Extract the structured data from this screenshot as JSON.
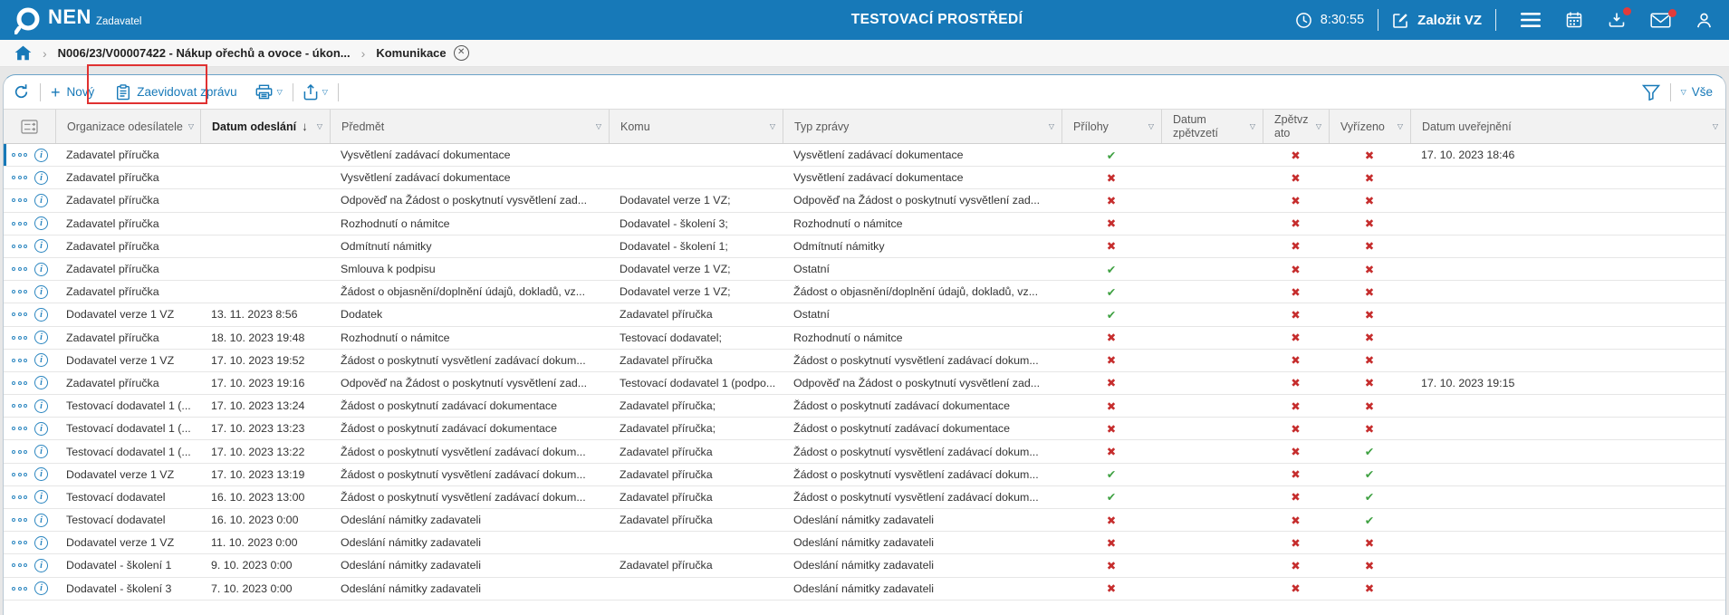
{
  "topbar": {
    "brand": "NEN",
    "brand_sub": "Zadavatel",
    "title": "TESTOVACÍ PROSTŘEDÍ",
    "clock": "8:30:55",
    "create_label": "Založit VZ",
    "has_download_notification": true,
    "has_mail_notification": true
  },
  "breadcrumb": {
    "items": [
      "N006/23/V00007422 - Nákup ořechů a ovoce - úkon...",
      "Komunikace"
    ]
  },
  "toolbar": {
    "new_label": "Nový",
    "register_label": "Zaevidovat zprávu",
    "filter_all_label": "Vše"
  },
  "glyphs": {
    "filter_caret": "▽",
    "sort_desc": "↓",
    "plus": "+",
    "check": "✔",
    "cross": "✖",
    "chevron": "›",
    "close": "✕"
  },
  "table": {
    "columns": [
      {
        "key": "org",
        "label": "Organizace odesílatele",
        "filter": true
      },
      {
        "key": "sent",
        "label": "Datum odeslání",
        "filter": true,
        "sorted": "desc"
      },
      {
        "key": "subject",
        "label": "Předmět",
        "filter": true
      },
      {
        "key": "to",
        "label": "Komu",
        "filter": true
      },
      {
        "key": "type",
        "label": "Typ zprávy",
        "filter": true
      },
      {
        "key": "attachments",
        "label": "Přílohy",
        "filter": true,
        "icon_col": true
      },
      {
        "key": "withdrawal_date",
        "label": "Datum zpětvzetí",
        "filter": true,
        "wrap": true
      },
      {
        "key": "withdrawn",
        "label": "Zpětvzato",
        "filter": true,
        "icon_col": true,
        "wrap_narrow": true
      },
      {
        "key": "resolved",
        "label": "Vyřízeno",
        "filter": true,
        "icon_col": true
      },
      {
        "key": "published",
        "label": "Datum uveřejnění",
        "filter": true
      }
    ],
    "rows": [
      {
        "selected": true,
        "org": "Zadavatel příručka",
        "sent": "",
        "subject": "Vysvětlení zadávací dokumentace",
        "to": "",
        "type": "Vysvětlení zadávací dokumentace",
        "attachments": "yes",
        "withdrawal_date": "",
        "withdrawn": "no",
        "resolved": "no",
        "published": "17. 10. 2023 18:46"
      },
      {
        "org": "Zadavatel příručka",
        "sent": "",
        "subject": "Vysvětlení zadávací dokumentace",
        "to": "",
        "type": "Vysvětlení zadávací dokumentace",
        "attachments": "no",
        "withdrawal_date": "",
        "withdrawn": "no",
        "resolved": "no",
        "published": ""
      },
      {
        "org": "Zadavatel příručka",
        "sent": "",
        "subject": "Odpověď na Žádost o poskytnutí vysvětlení zad...",
        "to": "Dodavatel verze 1 VZ;",
        "type": "Odpověď na Žádost o poskytnutí vysvětlení zad...",
        "attachments": "no",
        "withdrawal_date": "",
        "withdrawn": "no",
        "resolved": "no",
        "published": ""
      },
      {
        "org": "Zadavatel příručka",
        "sent": "",
        "subject": "Rozhodnutí o námitce",
        "to": "Dodavatel - školení 3;",
        "type": "Rozhodnutí o námitce",
        "attachments": "no",
        "withdrawal_date": "",
        "withdrawn": "no",
        "resolved": "no",
        "published": ""
      },
      {
        "org": "Zadavatel příručka",
        "sent": "",
        "subject": "Odmítnutí námitky",
        "to": "Dodavatel - školení 1;",
        "type": "Odmítnutí námitky",
        "attachments": "no",
        "withdrawal_date": "",
        "withdrawn": "no",
        "resolved": "no",
        "published": ""
      },
      {
        "org": "Zadavatel příručka",
        "sent": "",
        "subject": "Smlouva k podpisu",
        "to": "Dodavatel verze 1 VZ;",
        "type": "Ostatní",
        "attachments": "yes",
        "withdrawal_date": "",
        "withdrawn": "no",
        "resolved": "no",
        "published": ""
      },
      {
        "org": "Zadavatel příručka",
        "sent": "",
        "subject": "Žádost o objasnění/doplnění údajů, dokladů, vz...",
        "to": "Dodavatel verze 1 VZ;",
        "type": "Žádost o objasnění/doplnění údajů, dokladů, vz...",
        "attachments": "yes",
        "withdrawal_date": "",
        "withdrawn": "no",
        "resolved": "no",
        "published": ""
      },
      {
        "org": "Dodavatel verze 1 VZ",
        "sent": "13. 11. 2023 8:56",
        "subject": "Dodatek",
        "to": "Zadavatel příručka",
        "type": "Ostatní",
        "attachments": "yes",
        "withdrawal_date": "",
        "withdrawn": "no",
        "resolved": "no",
        "published": ""
      },
      {
        "org": "Zadavatel příručka",
        "sent": "18. 10. 2023 19:48",
        "subject": "Rozhodnutí o námitce",
        "to": "Testovací dodavatel;",
        "type": "Rozhodnutí o námitce",
        "attachments": "no",
        "withdrawal_date": "",
        "withdrawn": "no",
        "resolved": "no",
        "published": ""
      },
      {
        "org": "Dodavatel verze 1 VZ",
        "sent": "17. 10. 2023 19:52",
        "subject": "Žádost o poskytnutí vysvětlení zadávací dokum...",
        "to": "Zadavatel příručka",
        "type": "Žádost o poskytnutí vysvětlení zadávací dokum...",
        "attachments": "no",
        "withdrawal_date": "",
        "withdrawn": "no",
        "resolved": "no",
        "published": ""
      },
      {
        "org": "Zadavatel příručka",
        "sent": "17. 10. 2023 19:16",
        "subject": "Odpověď na Žádost o poskytnutí vysvětlení zad...",
        "to": "Testovací dodavatel 1 (podpo...",
        "type": "Odpověď na Žádost o poskytnutí vysvětlení zad...",
        "attachments": "no",
        "withdrawal_date": "",
        "withdrawn": "no",
        "resolved": "no",
        "published": "17. 10. 2023 19:15"
      },
      {
        "org": "Testovací dodavatel 1 (...",
        "sent": "17. 10. 2023 13:24",
        "subject": "Žádost o poskytnutí zadávací dokumentace",
        "to": "Zadavatel příručka;",
        "type": "Žádost o poskytnutí zadávací dokumentace",
        "attachments": "no",
        "withdrawal_date": "",
        "withdrawn": "no",
        "resolved": "no",
        "published": ""
      },
      {
        "org": "Testovací dodavatel 1 (...",
        "sent": "17. 10. 2023 13:23",
        "subject": "Žádost o poskytnutí zadávací dokumentace",
        "to": "Zadavatel příručka;",
        "type": "Žádost o poskytnutí zadávací dokumentace",
        "attachments": "no",
        "withdrawal_date": "",
        "withdrawn": "no",
        "resolved": "no",
        "published": ""
      },
      {
        "org": "Testovací dodavatel 1 (...",
        "sent": "17. 10. 2023 13:22",
        "subject": "Žádost o poskytnutí vysvětlení zadávací dokum...",
        "to": "Zadavatel příručka",
        "type": "Žádost o poskytnutí vysvětlení zadávací dokum...",
        "attachments": "no",
        "withdrawal_date": "",
        "withdrawn": "no",
        "resolved": "yes",
        "published": ""
      },
      {
        "org": "Dodavatel verze 1 VZ",
        "sent": "17. 10. 2023 13:19",
        "subject": "Žádost o poskytnutí vysvětlení zadávací dokum...",
        "to": "Zadavatel příručka",
        "type": "Žádost o poskytnutí vysvětlení zadávací dokum...",
        "attachments": "yes",
        "withdrawal_date": "",
        "withdrawn": "no",
        "resolved": "yes",
        "published": ""
      },
      {
        "org": "Testovací dodavatel",
        "sent": "16. 10. 2023 13:00",
        "subject": "Žádost o poskytnutí vysvětlení zadávací dokum...",
        "to": "Zadavatel příručka",
        "type": "Žádost o poskytnutí vysvětlení zadávací dokum...",
        "attachments": "yes",
        "withdrawal_date": "",
        "withdrawn": "no",
        "resolved": "yes",
        "published": ""
      },
      {
        "org": "Testovací dodavatel",
        "sent": "16. 10. 2023 0:00",
        "subject": "Odeslání námitky zadavateli",
        "to": "Zadavatel příručka",
        "type": "Odeslání námitky zadavateli",
        "attachments": "no",
        "withdrawal_date": "",
        "withdrawn": "no",
        "resolved": "yes",
        "published": ""
      },
      {
        "org": "Dodavatel verze 1 VZ",
        "sent": "11. 10. 2023 0:00",
        "subject": "Odeslání námitky zadavateli",
        "to": "",
        "type": "Odeslání námitky zadavateli",
        "attachments": "no",
        "withdrawal_date": "",
        "withdrawn": "no",
        "resolved": "no",
        "published": ""
      },
      {
        "org": "Dodavatel - školení 1",
        "sent": "9. 10. 2023 0:00",
        "subject": "Odeslání námitky zadavateli",
        "to": "Zadavatel příručka",
        "type": "Odeslání námitky zadavateli",
        "attachments": "no",
        "withdrawal_date": "",
        "withdrawn": "no",
        "resolved": "no",
        "published": ""
      },
      {
        "org": "Dodavatel - školení 3",
        "sent": "7. 10. 2023 0:00",
        "subject": "Odeslání námitky zadavateli",
        "to": "",
        "type": "Odeslání námitky zadavateli",
        "attachments": "no",
        "withdrawal_date": "",
        "withdrawn": "no",
        "resolved": "no",
        "published": ""
      }
    ]
  }
}
